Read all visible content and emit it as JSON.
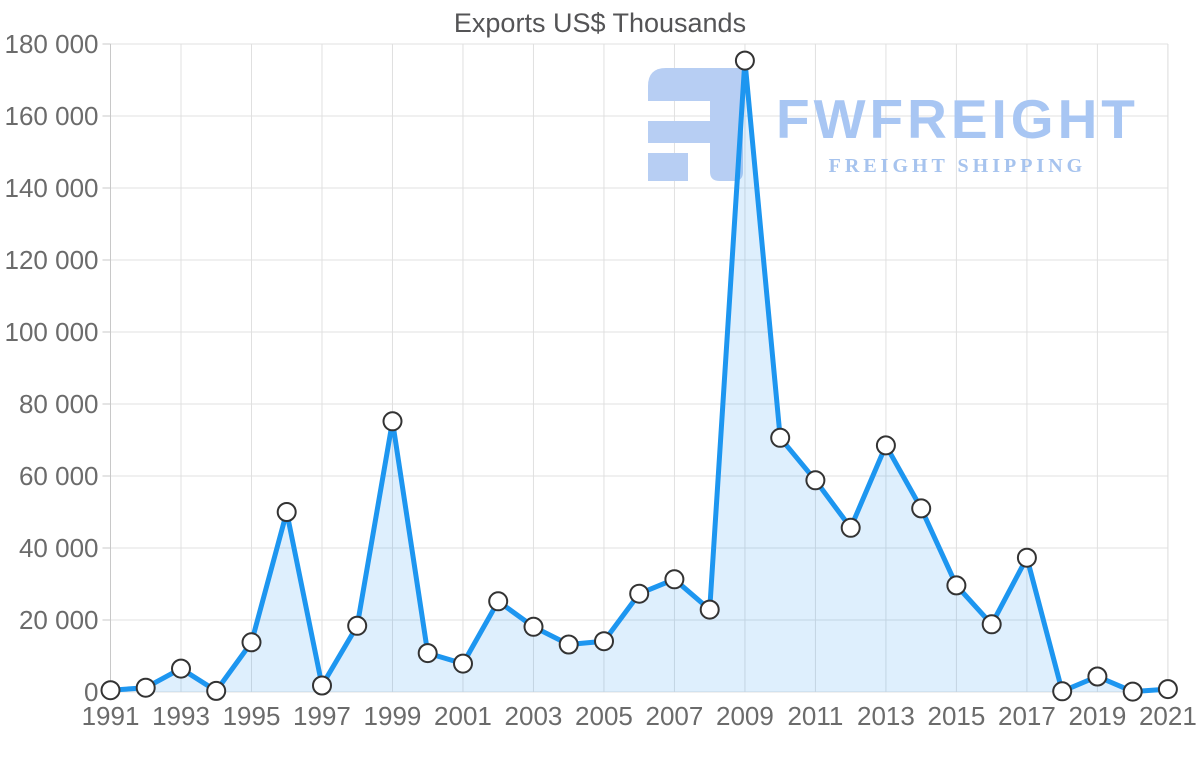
{
  "chart_data": {
    "type": "area",
    "title": "Exports US$ Thousands",
    "x": [
      1991,
      1992,
      1993,
      1994,
      1995,
      1996,
      1997,
      1998,
      1999,
      2000,
      2001,
      2002,
      2003,
      2004,
      2005,
      2006,
      2007,
      2008,
      2009,
      2010,
      2011,
      2012,
      2013,
      2014,
      2015,
      2016,
      2017,
      2018,
      2019,
      2020,
      2021
    ],
    "values": [
      500,
      1200,
      6500,
      300,
      13800,
      50000,
      1800,
      18400,
      75200,
      10800,
      7900,
      25200,
      18100,
      13200,
      14100,
      27300,
      31300,
      22900,
      175400,
      70600,
      58800,
      45600,
      68500,
      51000,
      29600,
      18800,
      37300,
      200,
      4300,
      100,
      800
    ],
    "series_name": "Exports US$ Thousands",
    "xlabel": "",
    "ylabel": "",
    "ylim": [
      0,
      180000
    ],
    "y_tick_interval": 20000,
    "y_tick_labels": [
      "0",
      "20 000",
      "40 000",
      "60 000",
      "80 000",
      "100 000",
      "120 000",
      "140 000",
      "160 000",
      "180 000"
    ],
    "x_tick_labels": [
      "1991",
      "1993",
      "1995",
      "1997",
      "1999",
      "2001",
      "2003",
      "2005",
      "2007",
      "2009",
      "2011",
      "2013",
      "2015",
      "2017",
      "2019",
      "2021"
    ],
    "grid": true,
    "legend": false
  },
  "watermark": {
    "brand": "FWFREIGHT",
    "tagline": "FREIGHT SHIPPING"
  },
  "colors": {
    "line": "#1d96f0",
    "fill": "#2196f3",
    "marker_fill": "#ffffff",
    "marker_stroke": "#333333",
    "grid": "#e0e0e0",
    "axis": "#c8c8c8",
    "tick_text": "#6b6b6b",
    "title_text": "#545456",
    "watermark_glyph": "#b7cef3",
    "watermark_brand": "#a8c6f3",
    "watermark_tagline": "#a6c3ee"
  }
}
